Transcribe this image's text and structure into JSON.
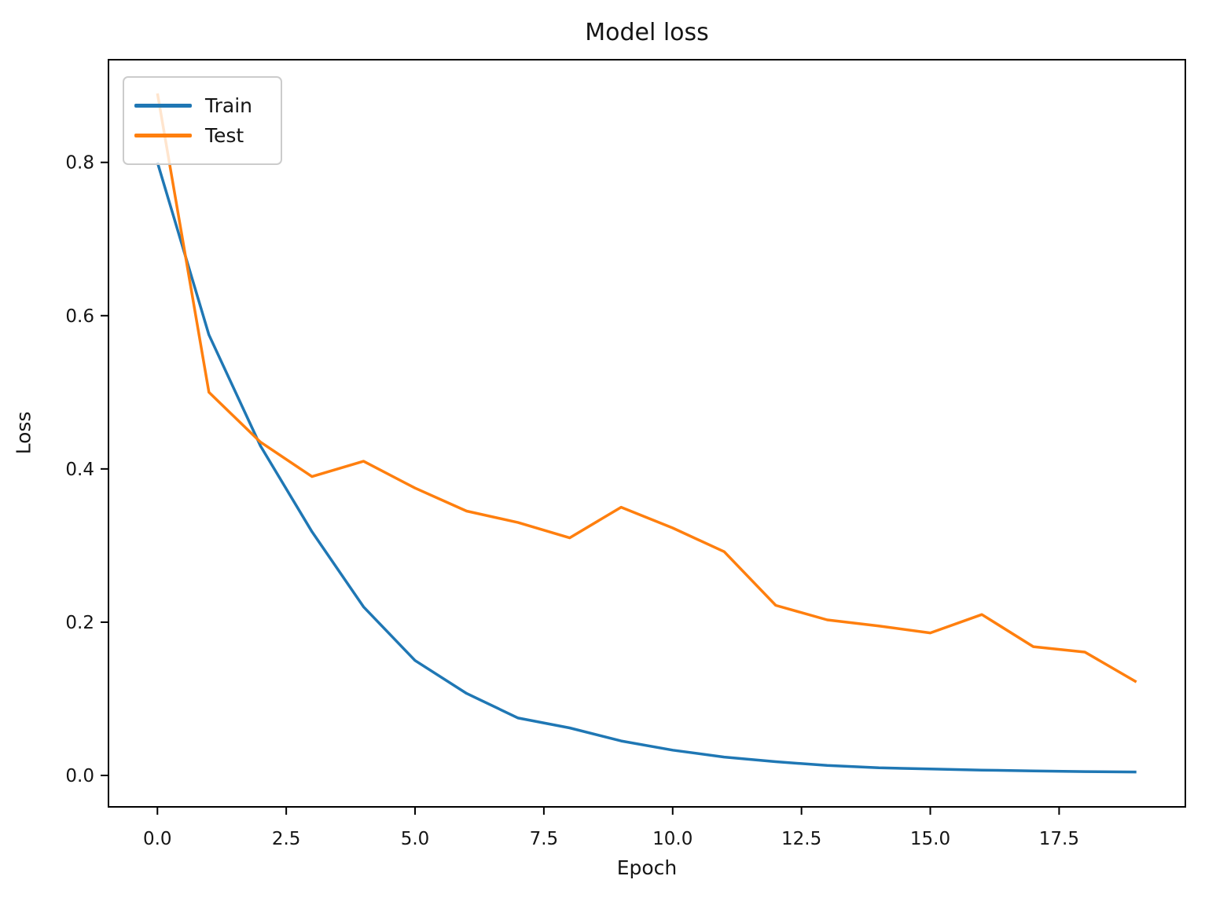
{
  "chart_data": {
    "type": "line",
    "title": "Model loss",
    "xlabel": "Epoch",
    "ylabel": "Loss",
    "x": [
      0,
      1,
      2,
      3,
      4,
      5,
      6,
      7,
      8,
      9,
      10,
      11,
      12,
      13,
      14,
      15,
      16,
      17,
      18,
      19
    ],
    "series": [
      {
        "name": "Train",
        "color": "#1f77b4",
        "values": [
          0.8,
          0.575,
          0.43,
          0.318,
          0.22,
          0.15,
          0.107,
          0.075,
          0.062,
          0.045,
          0.033,
          0.024,
          0.018,
          0.013,
          0.01,
          0.0085,
          0.007,
          0.006,
          0.005,
          0.0045
        ]
      },
      {
        "name": "Test",
        "color": "#ff7f0e",
        "values": [
          0.89,
          0.5,
          0.435,
          0.39,
          0.41,
          0.375,
          0.345,
          0.33,
          0.31,
          0.35,
          0.323,
          0.292,
          0.222,
          0.203,
          0.195,
          0.186,
          0.21,
          0.168,
          0.161,
          0.122
        ]
      }
    ],
    "xticks": {
      "values": [
        0,
        2.5,
        5,
        7.5,
        10,
        12.5,
        15,
        17.5
      ],
      "labels": [
        "0.0",
        "2.5",
        "5.0",
        "7.5",
        "10.0",
        "12.5",
        "15.0",
        "17.5"
      ]
    },
    "yticks": {
      "values": [
        0,
        0.2,
        0.4,
        0.6,
        0.8
      ],
      "labels": [
        "0.0",
        "0.2",
        "0.4",
        "0.6",
        "0.8"
      ]
    },
    "xlim": [
      -0.95,
      19.95
    ],
    "ylim": [
      -0.041,
      0.934
    ],
    "grid": false,
    "legend": {
      "position": "upper left",
      "entries": [
        "Train",
        "Test"
      ]
    },
    "spine_color": "#000000",
    "background_color": "#ffffff"
  }
}
